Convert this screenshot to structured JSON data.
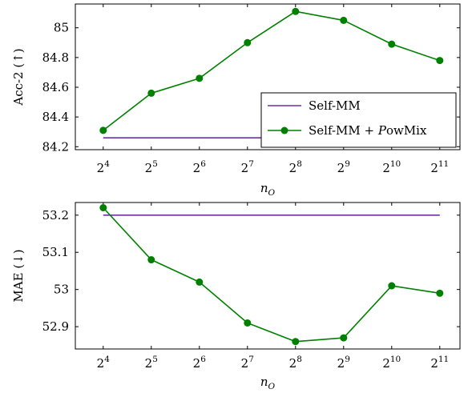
{
  "chart_data": [
    {
      "type": "line",
      "ylabel": "Acc-2 (↑)",
      "xlabel": "n_O",
      "x_tick_labels": [
        {
          "base": "2",
          "exp": "4"
        },
        {
          "base": "2",
          "exp": "5"
        },
        {
          "base": "2",
          "exp": "6"
        },
        {
          "base": "2",
          "exp": "7"
        },
        {
          "base": "2",
          "exp": "8"
        },
        {
          "base": "2",
          "exp": "9"
        },
        {
          "base": "2",
          "exp": "10"
        },
        {
          "base": "2",
          "exp": "11"
        }
      ],
      "x": [
        4,
        5,
        6,
        7,
        8,
        9,
        10,
        11
      ],
      "y_ticks": [
        "84.2",
        "84.4",
        "84.6",
        "84.8",
        "85"
      ],
      "y_tick_values": [
        84.2,
        84.4,
        84.6,
        84.8,
        85.0
      ],
      "ylim": [
        84.18,
        85.16
      ],
      "xlim": [
        3.42,
        11.42
      ],
      "legend": {
        "placement": "bottom-right"
      },
      "series": [
        {
          "name": "Self-MM",
          "values": [
            84.26,
            84.26,
            84.26,
            84.26,
            84.26,
            84.26,
            84.26,
            84.26
          ],
          "color": "#7030a0",
          "markers": false
        },
        {
          "name": "Self-MM + PowMix",
          "values": [
            84.31,
            84.56,
            84.66,
            84.9,
            85.11,
            85.05,
            84.89,
            84.78
          ],
          "color": "#008000",
          "markers": true
        }
      ]
    },
    {
      "type": "line",
      "ylabel": "MAE (↓)",
      "xlabel": "n_O",
      "x_tick_labels": [
        {
          "base": "2",
          "exp": "4"
        },
        {
          "base": "2",
          "exp": "5"
        },
        {
          "base": "2",
          "exp": "6"
        },
        {
          "base": "2",
          "exp": "7"
        },
        {
          "base": "2",
          "exp": "8"
        },
        {
          "base": "2",
          "exp": "9"
        },
        {
          "base": "2",
          "exp": "10"
        },
        {
          "base": "2",
          "exp": "11"
        }
      ],
      "x": [
        4,
        5,
        6,
        7,
        8,
        9,
        10,
        11
      ],
      "y_ticks": [
        "52.9",
        "53",
        "53.1",
        "53.2"
      ],
      "y_tick_values": [
        52.9,
        53.0,
        53.1,
        53.2
      ],
      "ylim": [
        52.84,
        53.234
      ],
      "xlim": [
        3.42,
        11.42
      ],
      "legend": null,
      "series": [
        {
          "name": "Self-MM",
          "values": [
            53.2,
            53.2,
            53.2,
            53.2,
            53.2,
            53.2,
            53.2,
            53.2
          ],
          "color": "#7030a0",
          "markers": false
        },
        {
          "name": "Self-MM + PowMix",
          "values": [
            53.22,
            53.08,
            53.02,
            52.91,
            52.86,
            52.87,
            53.01,
            52.99
          ],
          "color": "#008000",
          "markers": true
        }
      ]
    }
  ],
  "legend_labels": {
    "series1": "Self-MM",
    "series2_prefix": "Self-MM + ",
    "series2_script": "P",
    "series2_suffix": "owMix"
  }
}
